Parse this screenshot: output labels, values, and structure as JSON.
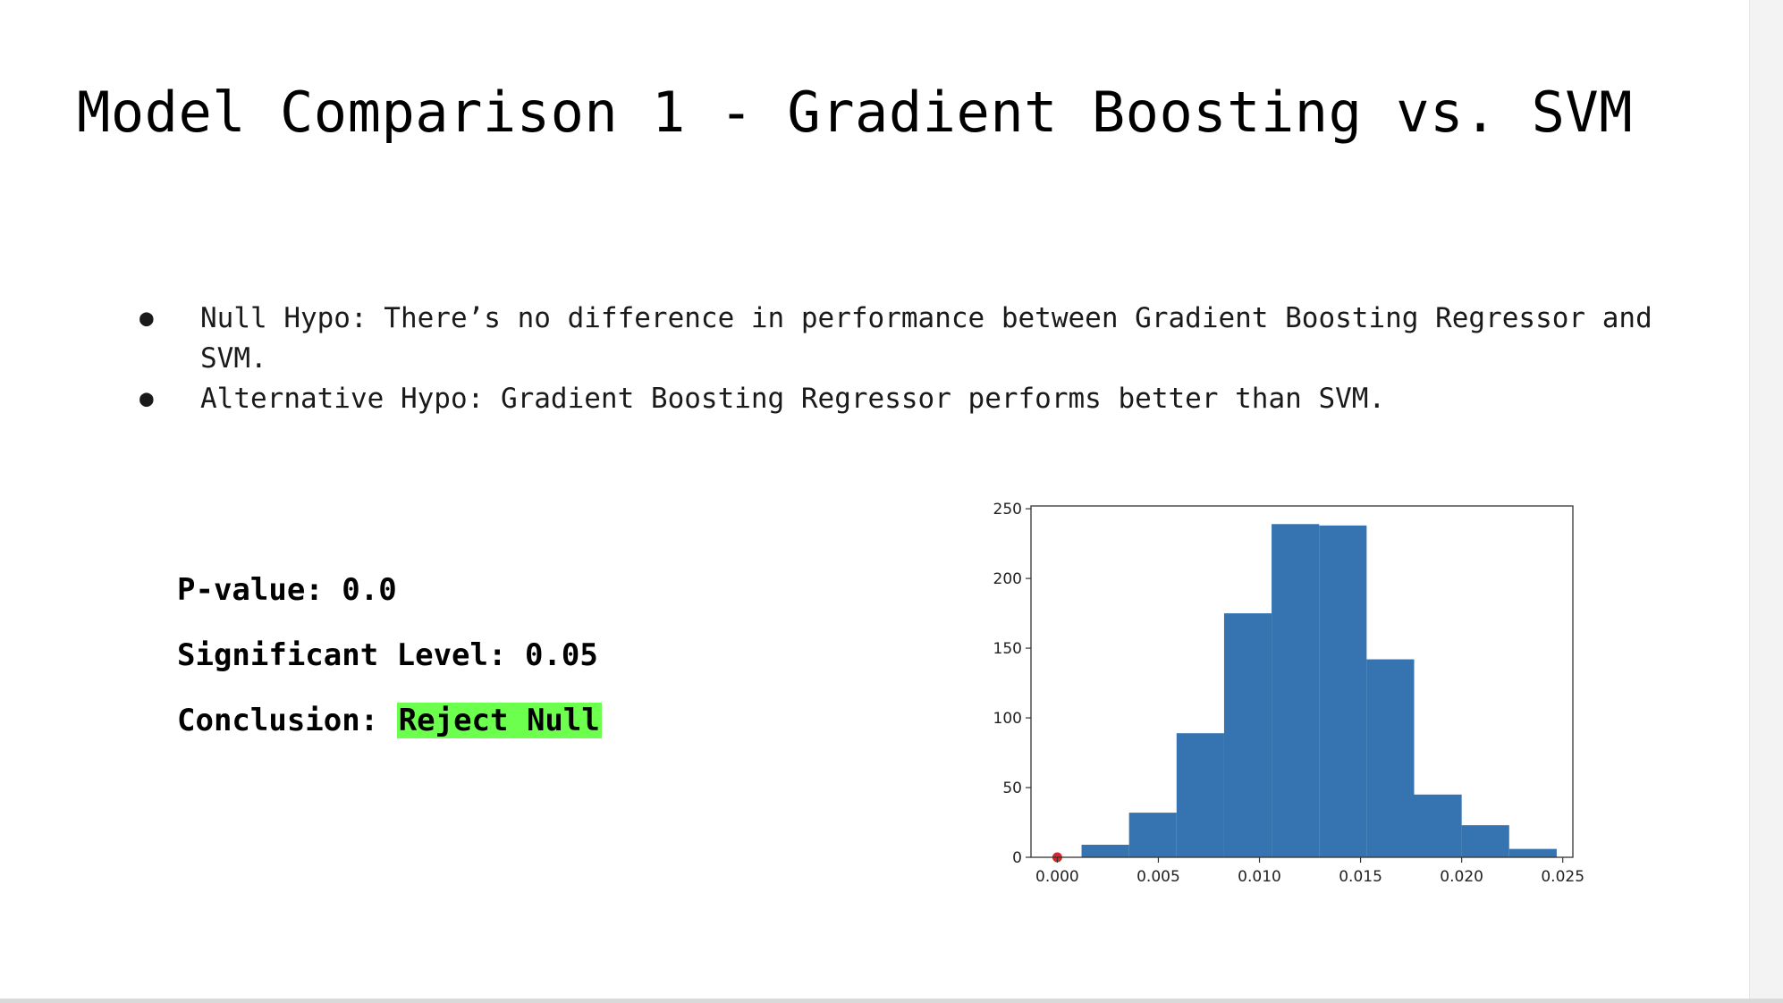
{
  "slide": {
    "title": "Model Comparison 1 - Gradient Boosting vs. SVM",
    "bullets": [
      "Null Hypo: There’s no difference in performance between Gradient Boosting Regressor and SVM.",
      "Alternative Hypo: Gradient Boosting Regressor performs better than SVM."
    ],
    "bullet_symbol": "●",
    "stats": {
      "pvalue_label": "P-value:",
      "pvalue": "0.0",
      "significance_label": "Significant Level:",
      "significance": "0.05",
      "conclusion_label": "Conclusion:",
      "conclusion": "Reject Null"
    },
    "colors": {
      "highlight": "#6cff4d",
      "bar": "#3574b0",
      "observed_marker": "#d62728"
    }
  },
  "chart_data": {
    "type": "bar",
    "title": "",
    "xlabel": "",
    "ylabel": "",
    "xlim": [
      -0.0013,
      0.0255
    ],
    "ylim": [
      0,
      252
    ],
    "xticks": [
      "0.000",
      "0.005",
      "0.010",
      "0.015",
      "0.020",
      "0.025"
    ],
    "yticks": [
      "0",
      "50",
      "100",
      "150",
      "200",
      "250"
    ],
    "bin_edges": [
      0.0012,
      0.00355,
      0.0059,
      0.00825,
      0.0106,
      0.01295,
      0.0153,
      0.01765,
      0.02,
      0.02235,
      0.0247
    ],
    "counts": [
      9,
      32,
      89,
      175,
      239,
      238,
      142,
      45,
      23,
      6
    ],
    "observed_statistic": {
      "x": 0.0,
      "y": 0
    },
    "grid": false,
    "legend": "none"
  }
}
